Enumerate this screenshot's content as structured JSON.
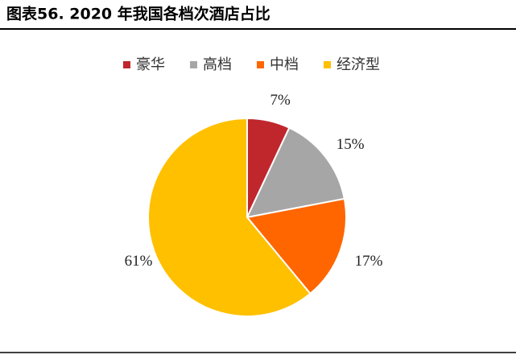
{
  "chart_data": {
    "type": "pie",
    "title": "图表56. 2020 年我国各档次酒店占比",
    "categories": [
      "豪华",
      "高档",
      "中档",
      "经济型"
    ],
    "values": [
      7,
      15,
      17,
      61
    ],
    "value_labels": [
      "7%",
      "15%",
      "17%",
      "61%"
    ],
    "colors": [
      "#c0272d",
      "#a6a6a6",
      "#ff6600",
      "#ffc000"
    ],
    "legend": "top"
  }
}
